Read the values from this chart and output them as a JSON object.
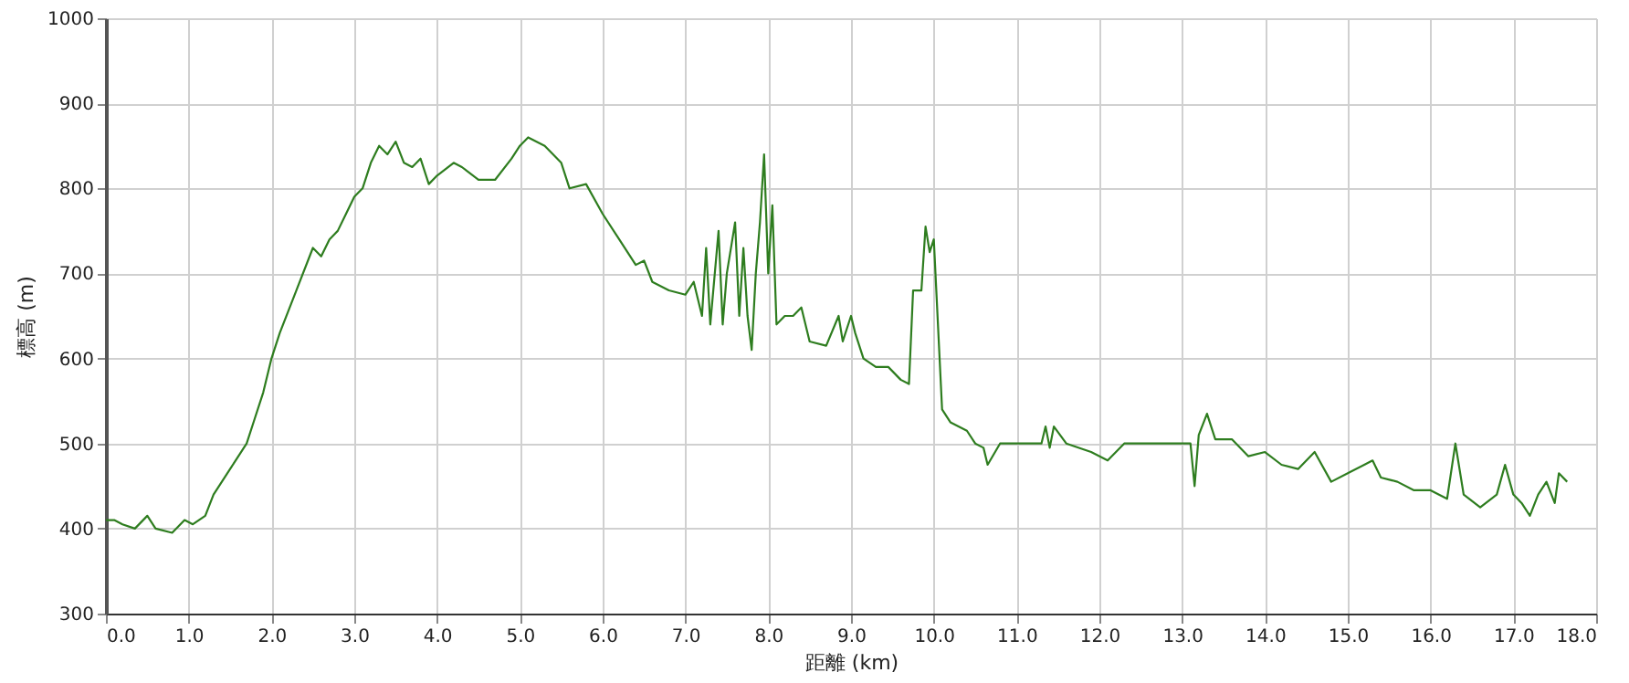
{
  "chart_data": {
    "type": "line",
    "xlabel": "距離 (km)",
    "ylabel": "標高 (m)",
    "x": [
      0,
      0.1,
      0.2,
      0.35,
      0.5,
      0.6,
      0.8,
      0.95,
      1.05,
      1.2,
      1.3,
      1.5,
      1.7,
      1.8,
      1.9,
      2.0,
      2.1,
      2.3,
      2.5,
      2.6,
      2.7,
      2.8,
      2.9,
      3.0,
      3.1,
      3.2,
      3.3,
      3.4,
      3.5,
      3.6,
      3.7,
      3.8,
      3.9,
      4.0,
      4.2,
      4.3,
      4.5,
      4.7,
      4.9,
      5.0,
      5.1,
      5.3,
      5.5,
      5.6,
      5.8,
      6.0,
      6.2,
      6.4,
      6.5,
      6.6,
      6.8,
      7.0,
      7.1,
      7.2,
      7.25,
      7.3,
      7.4,
      7.45,
      7.5,
      7.6,
      7.65,
      7.7,
      7.75,
      7.8,
      7.85,
      7.9,
      7.95,
      8.0,
      8.05,
      8.1,
      8.2,
      8.3,
      8.4,
      8.5,
      8.7,
      8.85,
      8.9,
      9.0,
      9.05,
      9.15,
      9.3,
      9.45,
      9.6,
      9.7,
      9.75,
      9.85,
      9.9,
      9.95,
      10.0,
      10.1,
      10.2,
      10.4,
      10.5,
      10.6,
      10.65,
      10.8,
      11.0,
      11.3,
      11.35,
      11.4,
      11.45,
      11.6,
      11.9,
      12.1,
      12.3,
      12.4,
      13.1,
      13.15,
      13.2,
      13.3,
      13.4,
      13.6,
      13.8,
      14.0,
      14.2,
      14.4,
      14.6,
      14.8,
      15.0,
      15.3,
      15.4,
      15.6,
      15.8,
      16.0,
      16.2,
      16.3,
      16.4,
      16.6,
      16.8,
      16.9,
      17.0,
      17.1,
      17.2,
      17.3,
      17.4,
      17.5,
      17.55,
      17.65
    ],
    "series": [
      {
        "color": "#2e7d1f",
        "values": [
          410,
          410,
          405,
          400,
          415,
          400,
          395,
          410,
          405,
          415,
          440,
          470,
          500,
          530,
          560,
          600,
          630,
          680,
          730,
          720,
          740,
          750,
          770,
          790,
          800,
          830,
          850,
          840,
          855,
          830,
          825,
          835,
          805,
          815,
          830,
          825,
          810,
          810,
          835,
          850,
          860,
          850,
          830,
          800,
          805,
          770,
          740,
          710,
          715,
          690,
          680,
          675,
          690,
          650,
          730,
          640,
          750,
          640,
          700,
          760,
          650,
          730,
          650,
          610,
          700,
          760,
          840,
          700,
          780,
          640,
          650,
          650,
          660,
          620,
          615,
          650,
          620,
          650,
          630,
          600,
          590,
          590,
          575,
          570,
          680,
          680,
          755,
          725,
          740,
          540,
          525,
          515,
          500,
          495,
          475,
          500,
          500,
          500,
          520,
          495,
          520,
          500,
          490,
          480,
          500,
          500,
          500,
          450,
          510,
          535,
          505,
          505,
          485,
          490,
          475,
          470,
          490,
          455,
          465,
          480,
          460,
          455,
          445,
          445,
          435,
          500,
          440,
          425,
          440,
          475,
          440,
          430,
          415,
          440,
          455,
          430,
          465,
          455
        ]
      }
    ],
    "xlim": [
      0,
      18
    ],
    "ylim": [
      300,
      1000
    ],
    "xticks": [
      {
        "value": 0,
        "label": "0.0"
      },
      {
        "value": 1,
        "label": "1.0"
      },
      {
        "value": 2,
        "label": "2.0"
      },
      {
        "value": 3,
        "label": "3.0"
      },
      {
        "value": 4,
        "label": "4.0"
      },
      {
        "value": 5,
        "label": "5.0"
      },
      {
        "value": 6,
        "label": "6.0"
      },
      {
        "value": 7,
        "label": "7.0"
      },
      {
        "value": 8,
        "label": "8.0"
      },
      {
        "value": 9,
        "label": "9.0"
      },
      {
        "value": 10,
        "label": "10.0"
      },
      {
        "value": 11,
        "label": "11.0"
      },
      {
        "value": 12,
        "label": "12.0"
      },
      {
        "value": 13,
        "label": "13.0"
      },
      {
        "value": 14,
        "label": "14.0"
      },
      {
        "value": 15,
        "label": "15.0"
      },
      {
        "value": 16,
        "label": "16.0"
      },
      {
        "value": 17,
        "label": "17.0"
      },
      {
        "value": 18,
        "label": "18.0"
      }
    ],
    "yticks": [
      300,
      400,
      500,
      600,
      700,
      800,
      900,
      1000
    ],
    "grid": true,
    "marker": "none",
    "line_style": "solid"
  }
}
